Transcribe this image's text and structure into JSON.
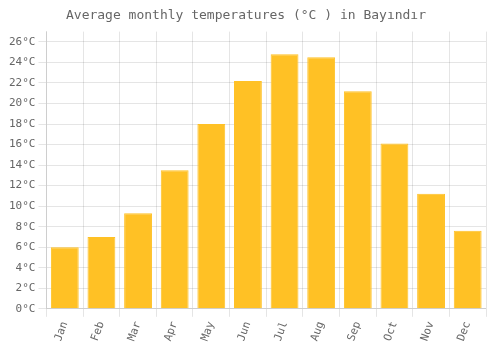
{
  "chart_data": {
    "type": "bar",
    "title": "Average monthly temperatures (°C ) in Bayındır",
    "categories": [
      "Jan",
      "Feb",
      "Mar",
      "Apr",
      "May",
      "Jun",
      "Jul",
      "Aug",
      "Sep",
      "Oct",
      "Nov",
      "Dec"
    ],
    "values": [
      6.0,
      7.0,
      9.3,
      13.5,
      18.0,
      22.2,
      24.8,
      24.5,
      21.2,
      16.1,
      11.2,
      7.6
    ],
    "color": "#FFC125",
    "ylim": [
      0,
      27
    ],
    "yticks": [
      {
        "value": 0,
        "label": "0°C"
      },
      {
        "value": 2,
        "label": "2°C"
      },
      {
        "value": 4,
        "label": "4°C"
      },
      {
        "value": 6,
        "label": "6°C"
      },
      {
        "value": 8,
        "label": "8°C"
      },
      {
        "value": 10,
        "label": "10°C"
      },
      {
        "value": 12,
        "label": "12°C"
      },
      {
        "value": 14,
        "label": "14°C"
      },
      {
        "value": 16,
        "label": "16°C"
      },
      {
        "value": 18,
        "label": "18°C"
      },
      {
        "value": 20,
        "label": "20°C"
      },
      {
        "value": 22,
        "label": "22°C"
      },
      {
        "value": 24,
        "label": "24°C"
      },
      {
        "value": 26,
        "label": "26°C"
      }
    ],
    "grid": true
  }
}
